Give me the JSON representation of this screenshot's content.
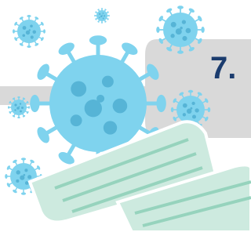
{
  "label": "7."
}
